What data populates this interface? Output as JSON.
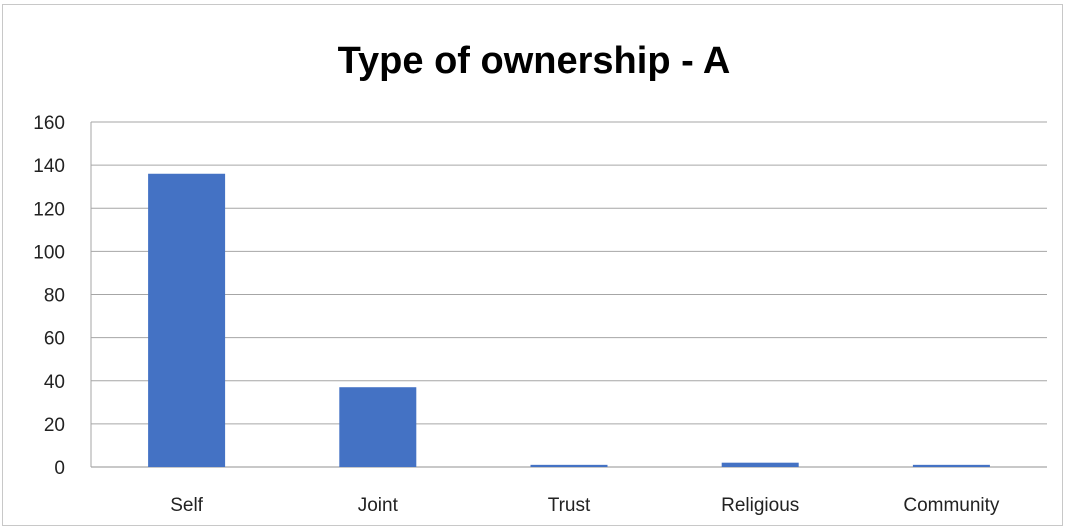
{
  "chart_data": {
    "type": "bar",
    "title": "Type of ownership - A",
    "categories": [
      "Self",
      "Joint",
      "Trust",
      "Religious",
      "Community"
    ],
    "values": [
      136,
      37,
      1,
      2,
      1
    ],
    "xlabel": "",
    "ylabel": "",
    "ylim": [
      0,
      160
    ],
    "yticks": [
      0,
      20,
      40,
      60,
      80,
      100,
      120,
      140,
      160
    ],
    "grid": true,
    "legend": "none",
    "colors": {
      "bar": "#4472c4",
      "grid": "#a6a6a6",
      "axis": "#a6a6a6"
    }
  }
}
